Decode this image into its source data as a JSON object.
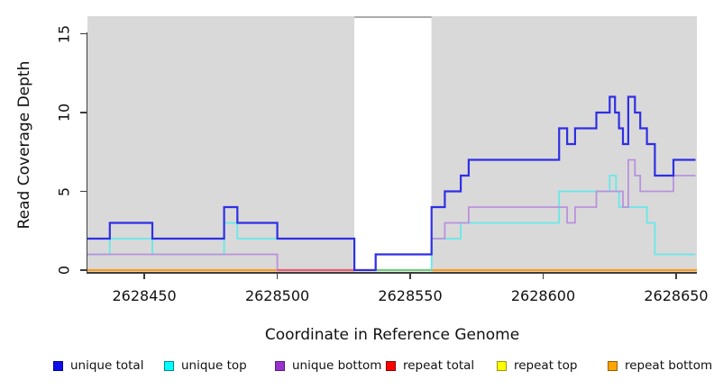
{
  "chart_data": {
    "type": "line",
    "subtype": "step-coverage",
    "title": "",
    "xlabel": "Coordinate in Reference Genome",
    "ylabel": "Read Coverage Depth",
    "xlim": [
      2628428.6,
      2628657.8
    ],
    "ylim": [
      0,
      16.1
    ],
    "grid": "off",
    "panel_background": "#d9d9d9",
    "x_ticks": [
      {
        "value": 2628450,
        "label": "2628450"
      },
      {
        "value": 2628500,
        "label": "2628500"
      },
      {
        "value": 2628550,
        "label": "2628550"
      },
      {
        "value": 2628600,
        "label": "2628600"
      },
      {
        "value": 2628650,
        "label": "2628650"
      }
    ],
    "y_ticks": [
      {
        "value": 0,
        "label": "0"
      },
      {
        "value": 5,
        "label": "5"
      },
      {
        "value": 10,
        "label": "10"
      },
      {
        "value": 15,
        "label": "15"
      }
    ],
    "highlight_band": {
      "x_start": 2628529,
      "x_end": 2628558,
      "color": "#ffffff",
      "top_border_color": "#8f8f8f"
    },
    "series": [
      {
        "name": "unique total",
        "color": "#2f2fe4",
        "stroke_width": 2.2,
        "end": 2628657.3,
        "steps": [
          [
            2628428.6,
            2
          ],
          [
            2628437,
            3
          ],
          [
            2628453,
            2
          ],
          [
            2628480,
            4
          ],
          [
            2628485,
            3
          ],
          [
            2628500,
            2
          ],
          [
            2628529,
            0
          ],
          [
            2628537,
            1
          ],
          [
            2628558,
            4
          ],
          [
            2628563,
            5
          ],
          [
            2628569,
            6
          ],
          [
            2628572,
            7
          ],
          [
            2628606,
            9
          ],
          [
            2628609,
            8
          ],
          [
            2628612,
            9
          ],
          [
            2628620,
            10
          ],
          [
            2628625,
            11
          ],
          [
            2628627,
            10
          ],
          [
            2628628.5,
            9
          ],
          [
            2628630,
            8
          ],
          [
            2628632,
            11
          ],
          [
            2628634.5,
            10
          ],
          [
            2628636.5,
            9
          ],
          [
            2628639,
            8
          ],
          [
            2628642,
            6
          ],
          [
            2628649,
            7
          ]
        ]
      },
      {
        "name": "unique top",
        "color": "#67e8e8",
        "stroke_width": 1.8,
        "end": 2628657.3,
        "steps": [
          [
            2628428.6,
            1
          ],
          [
            2628437,
            2
          ],
          [
            2628453,
            1
          ],
          [
            2628480,
            3
          ],
          [
            2628485,
            2
          ],
          [
            2628529,
            0
          ],
          [
            2628558,
            2
          ],
          [
            2628569,
            3
          ],
          [
            2628606,
            5
          ],
          [
            2628625,
            6
          ],
          [
            2628627.4,
            5
          ],
          [
            2628628.5,
            4
          ],
          [
            2628639,
            3
          ],
          [
            2628642,
            1
          ]
        ]
      },
      {
        "name": "unique bottom",
        "color": "#b991dc",
        "stroke_width": 1.8,
        "end": 2628657.3,
        "steps": [
          [
            2628428.6,
            1
          ],
          [
            2628500,
            0
          ],
          [
            2628537,
            1
          ],
          [
            2628558,
            2
          ],
          [
            2628563,
            3
          ],
          [
            2628572,
            4
          ],
          [
            2628609,
            3
          ],
          [
            2628612,
            4
          ],
          [
            2628620,
            5
          ],
          [
            2628630,
            4
          ],
          [
            2628632,
            7
          ],
          [
            2628634.5,
            6
          ],
          [
            2628636.5,
            5
          ],
          [
            2628649,
            6
          ]
        ]
      },
      {
        "name": "repeat total",
        "color": "#ff0000",
        "stroke_width": 2,
        "end": 2628657.8,
        "steps": [
          [
            2628428.6,
            0
          ]
        ]
      },
      {
        "name": "repeat top",
        "color": "#ffff00",
        "stroke_width": 2,
        "end": 2628657.8,
        "steps": [
          [
            2628428.6,
            0
          ]
        ]
      },
      {
        "name": "repeat bottom",
        "color": "#ff9b1a",
        "stroke_width": 2.2,
        "end": 2628657.8,
        "steps": [
          [
            2628428.6,
            0
          ]
        ]
      }
    ],
    "baseline_overlay_segments": [
      {
        "x_start": 2628500,
        "x_end": 2628529,
        "value": 0,
        "color": "#e35f7d"
      },
      {
        "x_start": 2628537,
        "x_end": 2628558,
        "value": 0,
        "color": "#6ecb8c"
      }
    ]
  },
  "legend": {
    "items": [
      {
        "label": "unique total",
        "fill": "#0f0fe8",
        "border": "#0000a0"
      },
      {
        "label": "unique top",
        "fill": "#00ffff",
        "border": "#008b8b"
      },
      {
        "label": "unique bottom",
        "fill": "#9a32cc",
        "border": "#551a8b"
      },
      {
        "label": "repeat total",
        "fill": "#ff0000",
        "border": "#8b0000"
      },
      {
        "label": "repeat top",
        "fill": "#ffff00",
        "border": "#999900"
      },
      {
        "label": "repeat bottom",
        "fill": "#ffa500",
        "border": "#945e00"
      }
    ]
  },
  "colors": {
    "axis": "#3c3c3c",
    "text": "#111111"
  }
}
